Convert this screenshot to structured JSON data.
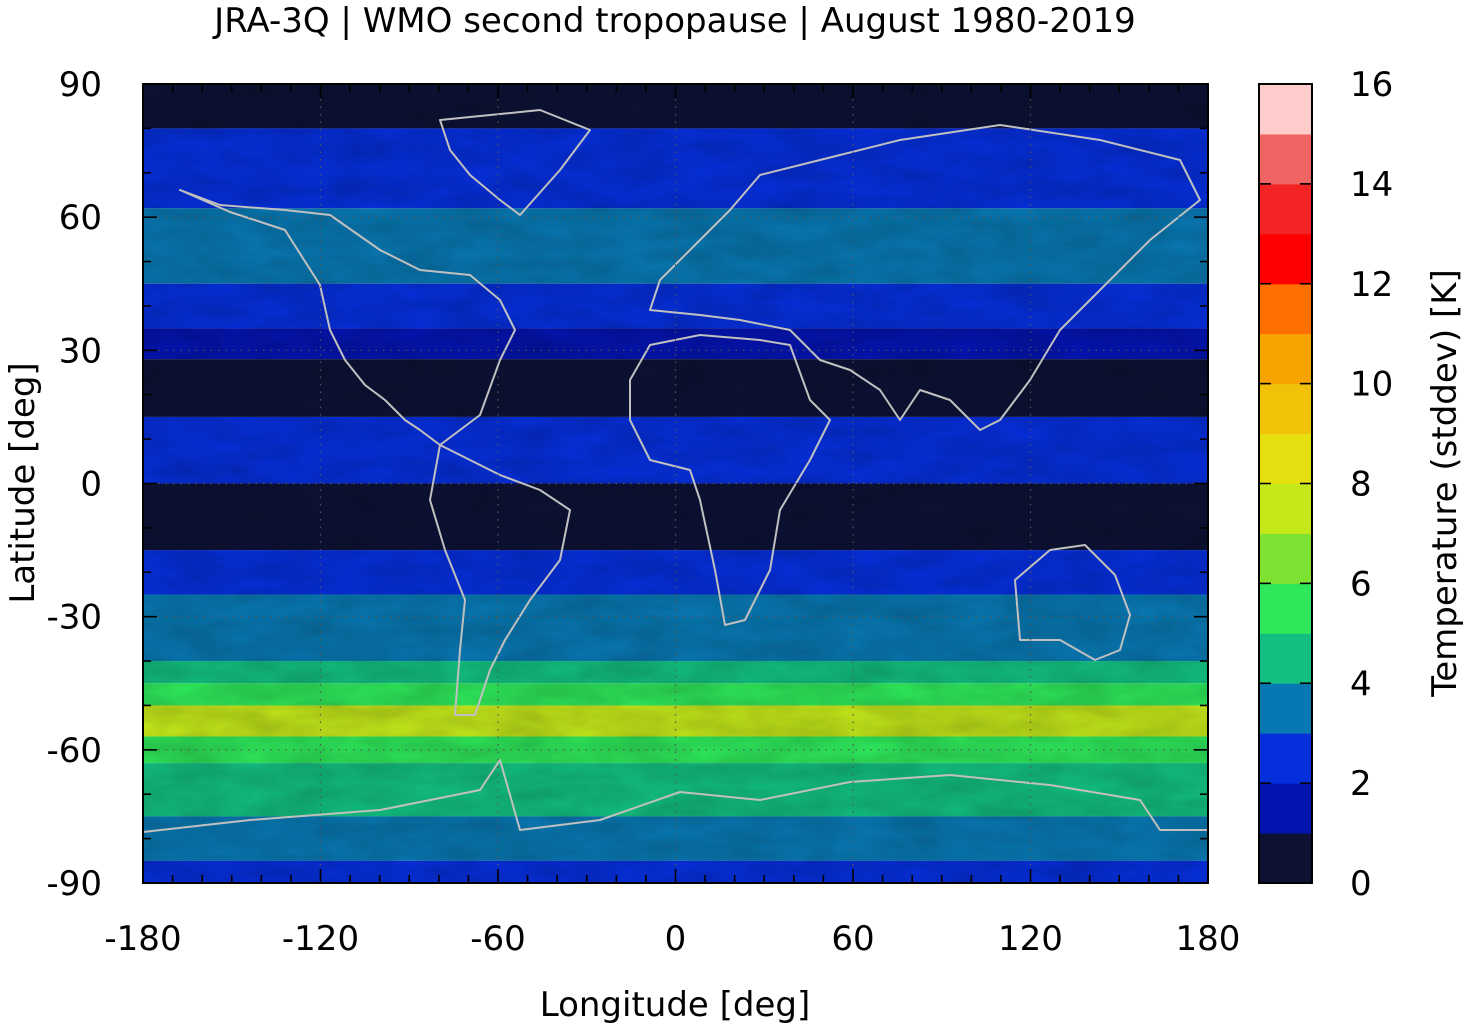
{
  "chart_data": {
    "type": "heatmap",
    "title": "JRA-3Q | WMO second tropopause | August 1980-2019",
    "xlabel": "Longitude [deg]",
    "ylabel": "Latitude [deg]",
    "colorbar_label": "Temperature (stddev) [K]",
    "xlim": [
      -180,
      180
    ],
    "ylim": [
      -90,
      90
    ],
    "x_ticks": [
      -180,
      -120,
      -60,
      0,
      60,
      120,
      180
    ],
    "x_tick_labels": [
      "-180",
      "-120",
      "-60",
      "0",
      "60",
      "120",
      "180"
    ],
    "y_ticks": [
      90,
      60,
      30,
      0,
      -30,
      -60,
      -90
    ],
    "y_tick_labels": [
      "90",
      "60",
      "30",
      "0",
      "-30",
      "-60",
      "-90"
    ],
    "colorbar_ticks": [
      0,
      2,
      4,
      6,
      8,
      10,
      12,
      14,
      16
    ],
    "colorbar_tick_labels": [
      "0",
      "2",
      "4",
      "6",
      "8",
      "10",
      "12",
      "14",
      "16"
    ],
    "colorbar_range": [
      0,
      16
    ],
    "color_levels": [
      {
        "range": [
          0,
          1
        ],
        "color": "#0d1235"
      },
      {
        "range": [
          1,
          2
        ],
        "color": "#0414b0"
      },
      {
        "range": [
          2,
          3
        ],
        "color": "#062fdc"
      },
      {
        "range": [
          3,
          4
        ],
        "color": "#0878b2"
      },
      {
        "range": [
          4,
          5
        ],
        "color": "#12bf80"
      },
      {
        "range": [
          5,
          6
        ],
        "color": "#2ee85a"
      },
      {
        "range": [
          6,
          7
        ],
        "color": "#7ee232"
      },
      {
        "range": [
          7,
          8
        ],
        "color": "#c4e81a"
      },
      {
        "range": [
          8,
          9
        ],
        "color": "#e6e010"
      },
      {
        "range": [
          9,
          10
        ],
        "color": "#f2c208"
      },
      {
        "range": [
          10,
          11
        ],
        "color": "#f8a400"
      },
      {
        "range": [
          11,
          12
        ],
        "color": "#ff6e00"
      },
      {
        "range": [
          12,
          13
        ],
        "color": "#ff0000"
      },
      {
        "range": [
          13,
          14
        ],
        "color": "#f52424"
      },
      {
        "range": [
          14,
          15
        ],
        "color": "#f06464"
      },
      {
        "range": [
          15,
          16
        ],
        "color": "#ffcccc"
      }
    ],
    "zonal_pattern": [
      {
        "lat": [
          80,
          90
        ],
        "value": 0.7
      },
      {
        "lat": [
          62,
          80
        ],
        "value": 2.5
      },
      {
        "lat": [
          45,
          62
        ],
        "value": 3.5
      },
      {
        "lat": [
          35,
          45
        ],
        "value": 2.5
      },
      {
        "lat": [
          28,
          35
        ],
        "value": 1.5
      },
      {
        "lat": [
          15,
          28
        ],
        "value": 0.7
      },
      {
        "lat": [
          0,
          15
        ],
        "value": 2.5
      },
      {
        "lat": [
          -15,
          0
        ],
        "value": 0.8
      },
      {
        "lat": [
          -25,
          -15
        ],
        "value": 2.5
      },
      {
        "lat": [
          -40,
          -25
        ],
        "value": 3.5
      },
      {
        "lat": [
          -45,
          -40
        ],
        "value": 4.5
      },
      {
        "lat": [
          -50,
          -45
        ],
        "value": 5.5
      },
      {
        "lat": [
          -57,
          -50
        ],
        "value": 7.5
      },
      {
        "lat": [
          -63,
          -57
        ],
        "value": 5.5
      },
      {
        "lat": [
          -75,
          -63
        ],
        "value": 4.5
      },
      {
        "lat": [
          -85,
          -75
        ],
        "value": 3.5
      },
      {
        "lat": [
          -90,
          -85
        ],
        "value": 2.5
      }
    ],
    "grid": true,
    "coastlines": true,
    "coastline_color": "#c0c0c0",
    "grid_style": "dotted"
  }
}
